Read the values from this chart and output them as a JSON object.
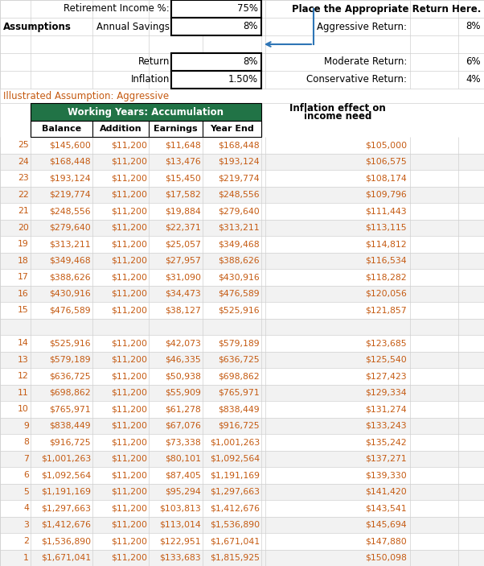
{
  "illustrated_text": "Illustrated Assumption: Aggressive",
  "green_header": "Working Years: Accumulation",
  "col_headers": [
    "Balance",
    "Addition",
    "Earnings",
    "Year End"
  ],
  "right_section_header1": "Inflation effect on",
  "right_section_header2": "income need",
  "table_data": [
    [
      25,
      "$145,600",
      "$11,200",
      "$11,648",
      "$168,448",
      "$105,000"
    ],
    [
      24,
      "$168,448",
      "$11,200",
      "$13,476",
      "$193,124",
      "$106,575"
    ],
    [
      23,
      "$193,124",
      "$11,200",
      "$15,450",
      "$219,774",
      "$108,174"
    ],
    [
      22,
      "$219,774",
      "$11,200",
      "$17,582",
      "$248,556",
      "$109,796"
    ],
    [
      21,
      "$248,556",
      "$11,200",
      "$19,884",
      "$279,640",
      "$111,443"
    ],
    [
      20,
      "$279,640",
      "$11,200",
      "$22,371",
      "$313,211",
      "$113,115"
    ],
    [
      19,
      "$313,211",
      "$11,200",
      "$25,057",
      "$349,468",
      "$114,812"
    ],
    [
      18,
      "$349,468",
      "$11,200",
      "$27,957",
      "$388,626",
      "$116,534"
    ],
    [
      17,
      "$388,626",
      "$11,200",
      "$31,090",
      "$430,916",
      "$118,282"
    ],
    [
      16,
      "$430,916",
      "$11,200",
      "$34,473",
      "$476,589",
      "$120,056"
    ],
    [
      15,
      "$476,589",
      "$11,200",
      "$38,127",
      "$525,916",
      "$121,857"
    ],
    [
      "",
      "",
      "",
      "",
      "",
      ""
    ],
    [
      14,
      "$525,916",
      "$11,200",
      "$42,073",
      "$579,189",
      "$123,685"
    ],
    [
      13,
      "$579,189",
      "$11,200",
      "$46,335",
      "$636,725",
      "$125,540"
    ],
    [
      12,
      "$636,725",
      "$11,200",
      "$50,938",
      "$698,862",
      "$127,423"
    ],
    [
      11,
      "$698,862",
      "$11,200",
      "$55,909",
      "$765,971",
      "$129,334"
    ],
    [
      10,
      "$765,971",
      "$11,200",
      "$61,278",
      "$838,449",
      "$131,274"
    ],
    [
      9,
      "$838,449",
      "$11,200",
      "$67,076",
      "$916,725",
      "$133,243"
    ],
    [
      8,
      "$916,725",
      "$11,200",
      "$73,338",
      "$1,001,263",
      "$135,242"
    ],
    [
      7,
      "$1,001,263",
      "$11,200",
      "$80,101",
      "$1,092,564",
      "$137,271"
    ],
    [
      6,
      "$1,092,564",
      "$11,200",
      "$87,405",
      "$1,191,169",
      "$139,330"
    ],
    [
      5,
      "$1,191,169",
      "$11,200",
      "$95,294",
      "$1,297,663",
      "$141,420"
    ],
    [
      4,
      "$1,297,663",
      "$11,200",
      "$103,813",
      "$1,412,676",
      "$143,541"
    ],
    [
      3,
      "$1,412,676",
      "$11,200",
      "$113,014",
      "$1,536,890",
      "$145,694"
    ],
    [
      2,
      "$1,536,890",
      "$11,200",
      "$122,951",
      "$1,671,041",
      "$147,880"
    ],
    [
      1,
      "$1,671,041",
      "$11,200",
      "$133,683",
      "$1,815,925",
      "$150,098"
    ]
  ],
  "colors": {
    "green_bg": "#217346",
    "orange": "#C55A11",
    "grid": "#D0D0D0",
    "black": "#000000",
    "blue_arrow": "#2E75B6",
    "white": "#FFFFFF",
    "alt_row": "#F2F2F2"
  },
  "fig_w": 6.02,
  "fig_h": 7.03,
  "dpi": 100
}
